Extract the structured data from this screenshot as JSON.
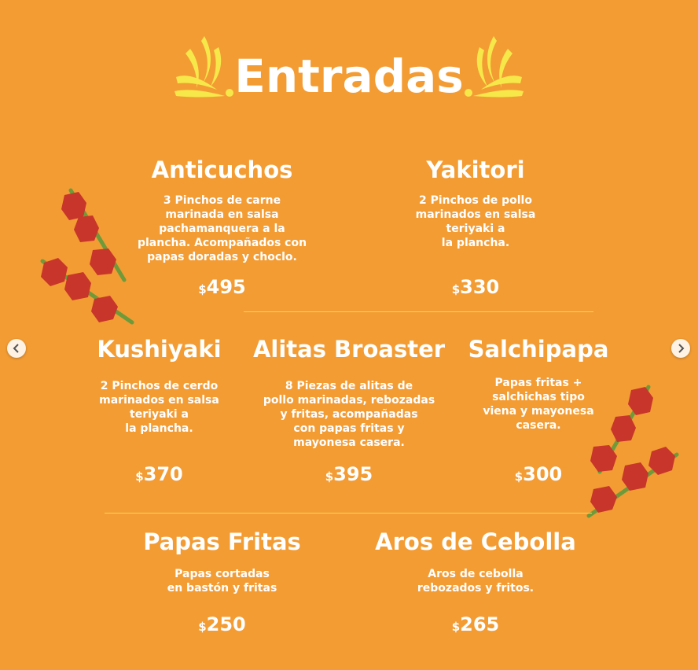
{
  "title": "Entradas",
  "currency_symbol": "$",
  "items": [
    {
      "name": "Anticuchos",
      "description": "3 Pinchos de carne\nmarinada en salsa\npachamanquera a la\nplancha. Acompañados con\npapas doradas y choclo.",
      "price": "495"
    },
    {
      "name": "Yakitori",
      "description": "2 Pinchos de pollo\nmarinados en salsa\nteriyaki a\nla plancha.",
      "price": "330"
    },
    {
      "name": "Kushiyaki",
      "description": "2 Pinchos de cerdo\nmarinados en salsa\nteriyaki a\nla plancha.",
      "price": "370"
    },
    {
      "name": "Alitas Broaster",
      "description": "8 Piezas de alitas de\npollo marinadas, rebozadas\ny fritas, acompañadas\ncon papas fritas y\nmayonesa casera.",
      "price": "395"
    },
    {
      "name": "Salchipapa",
      "description": "Papas fritas +\nsalchichas tipo\nviena y mayonesa\ncasera.",
      "price": "300"
    },
    {
      "name": "Papas Fritas",
      "description": "Papas cortadas\nen bastón y fritas",
      "price": "250"
    },
    {
      "name": "Aros de Cebolla",
      "description": "Aros de cebolla\nrebozados y fritos.",
      "price": "265"
    }
  ],
  "colors": {
    "background": "#f39c34",
    "text": "#ffffff",
    "accent": "#f7e84a",
    "skewer_meat": "#c8352a",
    "skewer_stick": "#6e9a3a"
  },
  "icons": {
    "decor_left": "flame-swirl-icon",
    "decor_right": "flame-swirl-icon",
    "skewer": "skewer-icon",
    "prev": "chevron-left-icon",
    "next": "chevron-right-icon"
  }
}
